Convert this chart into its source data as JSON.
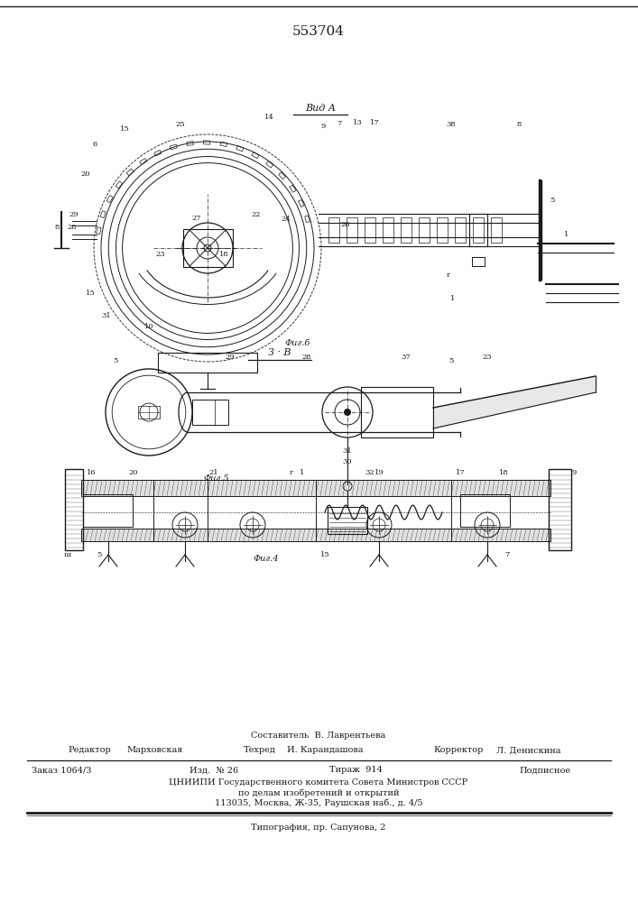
{
  "patent_number": "553704",
  "bg_color": "#ffffff",
  "line_color": "#1a1a1a",
  "fig_width": 7.07,
  "fig_height": 10.0,
  "footer_texts": {
    "sostavitel": "Составитель  В. Лаврентьева",
    "redaktor_label": "Редактор",
    "redaktor_val": "Марховская",
    "tehred_label": "Техред",
    "tehred_val": "И. Карандашова",
    "korrektor_label": "Корректор",
    "korrektor_val": "Л. Денискина",
    "zakaz": "Заказ 1064/3",
    "izd": "Изд.  № 26",
    "tirazh": "Тираж  914",
    "podpisnoe": "Подписное",
    "cniip_line1": "ЦНИИПИ Государственного комитета Совета Министров СССР",
    "cniip_line2": "по делам изобретений и открытий",
    "cniip_line3": "113035, Москва, Ж-35, Раушская наб., д. 4/5",
    "tipografia": "Типография, пр. Сапунова, 2"
  }
}
